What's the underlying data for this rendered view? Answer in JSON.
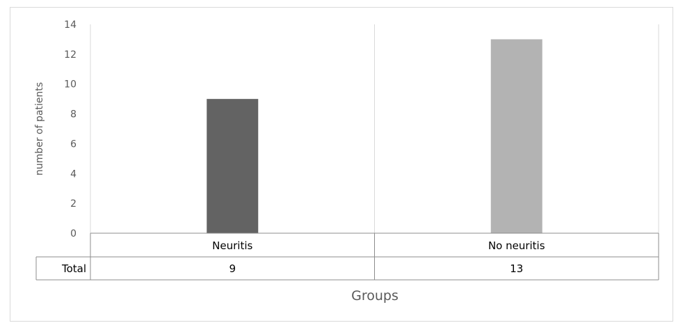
{
  "chart_data": {
    "type": "bar",
    "categories": [
      "Neuritis",
      "No neuritis"
    ],
    "values": [
      9,
      13
    ],
    "colors": [
      "#636363",
      "#b3b3b3"
    ],
    "ylabel": "number of patients",
    "xlabel": "Groups",
    "ylim": [
      0,
      14
    ],
    "yticks": [
      0,
      2,
      4,
      6,
      8,
      10,
      12,
      14
    ],
    "grid": "vertical separators",
    "data_table": {
      "row_label": "Total",
      "values": [
        "9",
        "13"
      ]
    }
  }
}
